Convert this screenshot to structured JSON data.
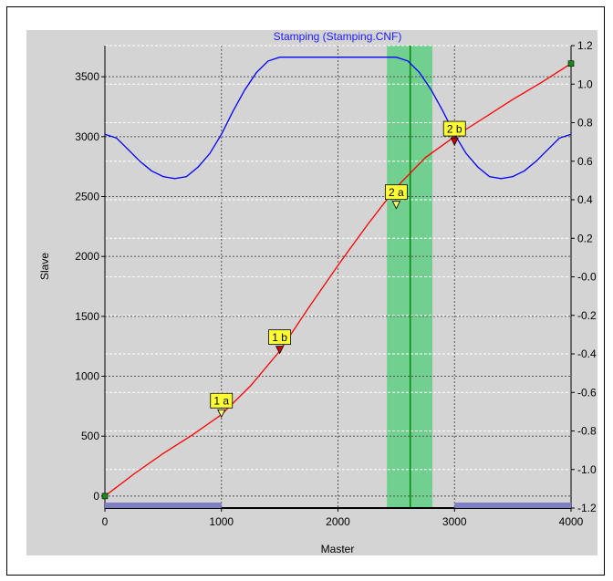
{
  "chart_data": {
    "type": "line",
    "title": "Stamping (Stamping.CNF)",
    "xlabel": "Master",
    "ylabel": "Slave",
    "xlim": [
      0,
      4000
    ],
    "ylim": [
      -100,
      3760
    ],
    "y2lim": [
      -1.2,
      1.2
    ],
    "grid": true,
    "x_ticks": [
      "0",
      "1000",
      "2000",
      "3000",
      "4000"
    ],
    "y_ticks": [
      "0",
      "500",
      "1000",
      "1500",
      "2000",
      "2500",
      "3000",
      "3500"
    ],
    "y2_ticks": [
      "1.2",
      "1.0",
      "0.8",
      "0.6",
      "0.4",
      "0.2",
      "-0.0",
      "-0.2",
      "-0.4",
      "-0.6",
      "-0.8",
      "-1.0",
      "-1.2"
    ],
    "series": [
      {
        "axis": "left",
        "color": "#ff0000",
        "x": [
          0,
          250,
          500,
          750,
          1000,
          1250,
          1500,
          1750,
          2000,
          2250,
          2500,
          2750,
          3000,
          3250,
          3500,
          3750,
          4000
        ],
        "y": [
          0,
          185,
          355,
          510,
          680,
          920,
          1210,
          1575,
          1925,
          2260,
          2575,
          2825,
          3000,
          3155,
          3310,
          3455,
          3610
        ]
      },
      {
        "axis": "right",
        "color": "#0000ff",
        "x": [
          0,
          100,
          200,
          300,
          400,
          500,
          600,
          700,
          800,
          900,
          1000,
          1100,
          1200,
          1300,
          1400,
          1500,
          2500,
          2600,
          2700,
          2800,
          2900,
          3000,
          3100,
          3200,
          3300,
          3400,
          3500,
          3600,
          3700,
          3800,
          3900,
          4000
        ],
        "y": [
          0.74,
          0.72,
          0.66,
          0.6,
          0.55,
          0.52,
          0.51,
          0.52,
          0.57,
          0.64,
          0.74,
          0.86,
          0.97,
          1.06,
          1.12,
          1.14,
          1.14,
          1.12,
          1.06,
          0.97,
          0.86,
          0.74,
          0.64,
          0.57,
          0.52,
          0.51,
          0.52,
          0.55,
          0.6,
          0.66,
          0.72,
          0.74
        ]
      }
    ],
    "highlight_band": {
      "x_from": 2420,
      "x_to": 2810,
      "color": "#5fcf83"
    },
    "cursor_line": {
      "x": 2620,
      "color": "#008800"
    },
    "range_bars": [
      {
        "x_from": 0,
        "x_to": 1000,
        "color": "#7f7fc4"
      },
      {
        "x_from": 3000,
        "x_to": 4000,
        "color": "#7f7fc4"
      }
    ],
    "markers": [
      {
        "label": "1 a",
        "x": 1000,
        "y": 690,
        "symbol_color": "#ffff66"
      },
      {
        "label": "1 b",
        "x": 1500,
        "y": 1220,
        "symbol_color": "#cc0000"
      },
      {
        "label": "2 a",
        "x": 2500,
        "y": 2430,
        "symbol_color": "#ffff66"
      },
      {
        "label": "2 b",
        "x": 3000,
        "y": 2960,
        "symbol_color": "#cc0000"
      }
    ]
  }
}
